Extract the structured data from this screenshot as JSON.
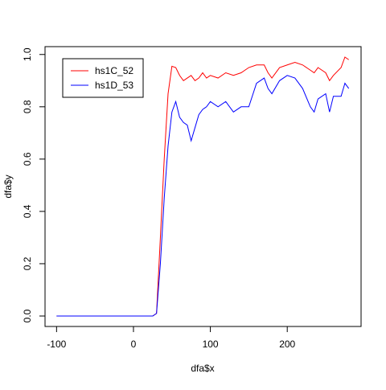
{
  "chart_data": {
    "type": "line",
    "x_label": "dfa$x",
    "y_label": "dfa$y",
    "x": [
      -100,
      25,
      30,
      35,
      40,
      45,
      50,
      55,
      60,
      65,
      70,
      75,
      80,
      85,
      90,
      95,
      100,
      110,
      120,
      130,
      140,
      150,
      160,
      170,
      175,
      180,
      190,
      200,
      210,
      220,
      230,
      235,
      240,
      250,
      255,
      260,
      270,
      275,
      280
    ],
    "series": [
      {
        "name": "hs1C_52",
        "color": "#ff0000",
        "values": [
          0,
          0,
          0.01,
          0.3,
          0.6,
          0.85,
          0.955,
          0.95,
          0.92,
          0.9,
          0.91,
          0.92,
          0.9,
          0.91,
          0.93,
          0.91,
          0.92,
          0.91,
          0.93,
          0.92,
          0.93,
          0.95,
          0.96,
          0.96,
          0.93,
          0.91,
          0.95,
          0.96,
          0.97,
          0.96,
          0.94,
          0.93,
          0.95,
          0.93,
          0.9,
          0.92,
          0.95,
          0.99,
          0.98
        ]
      },
      {
        "name": "hs1D_53",
        "color": "#0000ff",
        "values": [
          0,
          0,
          0.01,
          0.2,
          0.45,
          0.65,
          0.78,
          0.82,
          0.76,
          0.74,
          0.73,
          0.67,
          0.72,
          0.77,
          0.79,
          0.8,
          0.82,
          0.8,
          0.82,
          0.78,
          0.8,
          0.8,
          0.89,
          0.91,
          0.87,
          0.85,
          0.9,
          0.92,
          0.91,
          0.87,
          0.8,
          0.78,
          0.83,
          0.85,
          0.78,
          0.84,
          0.84,
          0.89,
          0.87
        ]
      }
    ],
    "xlim": [
      -115,
      296
    ],
    "ylim": [
      -0.04,
      1.03
    ],
    "xticks": [
      -100,
      0,
      100,
      200
    ],
    "yticks": [
      {
        "value": 0,
        "label": "0.0"
      },
      0.2,
      0.4,
      0.6,
      0.8,
      {
        "value": 1,
        "label": "1.0"
      }
    ],
    "legend": "top-left"
  }
}
